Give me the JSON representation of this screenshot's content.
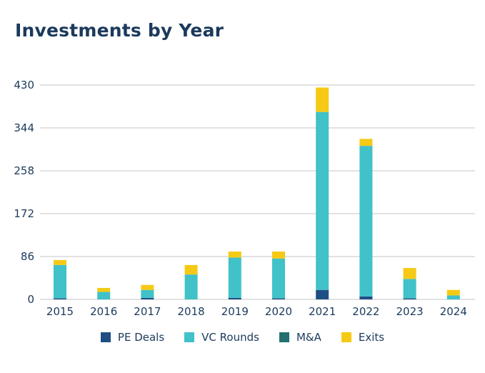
{
  "chart_data": {
    "type": "bar",
    "stacked": true,
    "title": "Investments by Year",
    "xlabel": "",
    "ylabel": "",
    "categories": [
      "2015",
      "2016",
      "2017",
      "2018",
      "2019",
      "2020",
      "2021",
      "2022",
      "2023",
      "2024"
    ],
    "series": [
      {
        "name": "PE Deals",
        "color": "#1f4e84",
        "values": [
          2,
          0,
          3,
          0,
          3,
          2,
          19,
          6,
          2,
          0
        ]
      },
      {
        "name": "VC Rounds",
        "color": "#41c1c8",
        "values": [
          67,
          15,
          16,
          50,
          81,
          80,
          357,
          302,
          39,
          8
        ]
      },
      {
        "name": "M&A",
        "color": "#23706f",
        "values": [
          0,
          0,
          0,
          0,
          0,
          0,
          0,
          0,
          0,
          0
        ]
      },
      {
        "name": "Exits",
        "color": "#f6c915",
        "values": [
          10,
          8,
          10,
          19,
          12,
          14,
          49,
          14,
          22,
          11
        ]
      }
    ],
    "yticks": [
      0,
      86,
      172,
      258,
      344,
      430
    ],
    "ylim": [
      0,
      430
    ],
    "grid": true,
    "legend": "bottom"
  }
}
